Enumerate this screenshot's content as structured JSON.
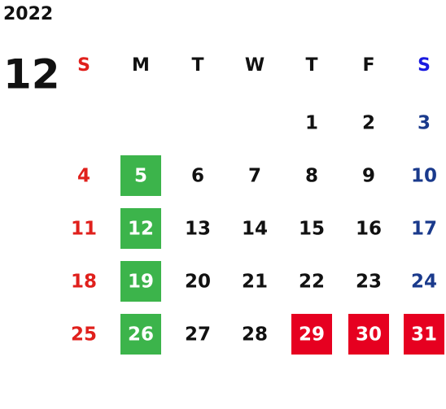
{
  "year": "2022",
  "month": "12",
  "weekdays": [
    "S",
    "M",
    "T",
    "W",
    "T",
    "F",
    "S"
  ],
  "weeks": [
    [
      null,
      null,
      null,
      null,
      1,
      2,
      3
    ],
    [
      4,
      5,
      6,
      7,
      8,
      9,
      10
    ],
    [
      11,
      12,
      13,
      14,
      15,
      16,
      17
    ],
    [
      18,
      19,
      20,
      21,
      22,
      23,
      24
    ],
    [
      25,
      26,
      27,
      28,
      29,
      30,
      31
    ]
  ]
}
